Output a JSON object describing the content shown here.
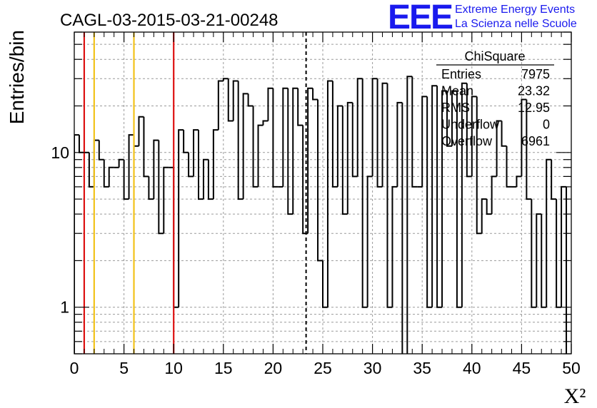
{
  "chart_data": {
    "type": "bar",
    "title": "CAGL-03-2015-03-21-00248",
    "xlabel": "X²",
    "ylabel": "Entries/bin",
    "xlim": [
      0,
      50
    ],
    "ylim": [
      0.5,
      60
    ],
    "yscale": "log",
    "grid": true,
    "x_ticks": [
      0,
      5,
      10,
      15,
      20,
      25,
      30,
      35,
      40,
      45,
      50
    ],
    "y_tick_labels": [
      {
        "value": 1,
        "label": "1"
      },
      {
        "value": 10,
        "label": "10"
      }
    ],
    "bin_width": 0.5,
    "bin_low_edges": [
      0,
      0.5,
      1,
      1.5,
      2,
      2.5,
      3,
      3.5,
      4,
      4.5,
      5,
      5.5,
      6,
      6.5,
      7,
      7.5,
      8,
      8.5,
      9,
      9.5,
      10,
      10.5,
      11,
      11.5,
      12,
      12.5,
      13,
      13.5,
      14,
      14.5,
      15,
      15.5,
      16,
      16.5,
      17,
      17.5,
      18,
      18.5,
      19,
      19.5,
      20,
      20.5,
      21,
      21.5,
      22,
      22.5,
      23,
      23.5,
      24,
      24.5,
      25,
      25.5,
      26,
      26.5,
      27,
      27.5,
      28,
      28.5,
      29,
      29.5,
      30,
      30.5,
      31,
      31.5,
      32,
      32.5,
      33,
      33.5,
      34,
      34.5,
      35,
      35.5,
      36,
      36.5,
      37,
      37.5,
      38,
      38.5,
      39,
      39.5,
      40,
      40.5,
      41,
      41.5,
      42,
      42.5,
      43,
      43.5,
      44,
      44.5,
      45,
      45.5,
      46,
      46.5,
      47,
      47.5,
      48,
      48.5,
      49,
      49.5
    ],
    "values": [
      13,
      10,
      10,
      6,
      12,
      9,
      6,
      8,
      8,
      9,
      5,
      13,
      11,
      17,
      7,
      5,
      12,
      3,
      8,
      8,
      1,
      14,
      10,
      7,
      14,
      5,
      9,
      5,
      14,
      29,
      30,
      16,
      29,
      5,
      24,
      20,
      6,
      15,
      16,
      26,
      6,
      6,
      26,
      4,
      26,
      15,
      3,
      26,
      22,
      2,
      1,
      29,
      6,
      20,
      4,
      21,
      7,
      30,
      1,
      7,
      30,
      6,
      28,
      1,
      6,
      21,
      0,
      31,
      6,
      6,
      23,
      1,
      27,
      1,
      25,
      11,
      25,
      1,
      28,
      7,
      23,
      3,
      5,
      4,
      7,
      16,
      11,
      6,
      6,
      7,
      22,
      5,
      1,
      4,
      1,
      9,
      5,
      1,
      6,
      0
    ]
  },
  "cut_lines": {
    "red_values": [
      1,
      10
    ],
    "orange_values": [
      2,
      6
    ],
    "mean_dashed_value": 23.32,
    "red_color": "#dd1111",
    "orange_color": "#f2c21a"
  },
  "stats_box": {
    "title": "ChiSquare",
    "rows": [
      {
        "label": "Entries",
        "value": "7975"
      },
      {
        "label": "Mean",
        "value": "23.32"
      },
      {
        "label": "RMS",
        "value": "12.95"
      },
      {
        "label": "Underflow",
        "value": "0"
      },
      {
        "label": "Overflow",
        "value": "6961"
      }
    ]
  },
  "logo": {
    "mark": "EEE",
    "line1": "Extreme Energy Events",
    "line2": "La Scienza nelle Scuole",
    "color": "#1a1aee"
  }
}
